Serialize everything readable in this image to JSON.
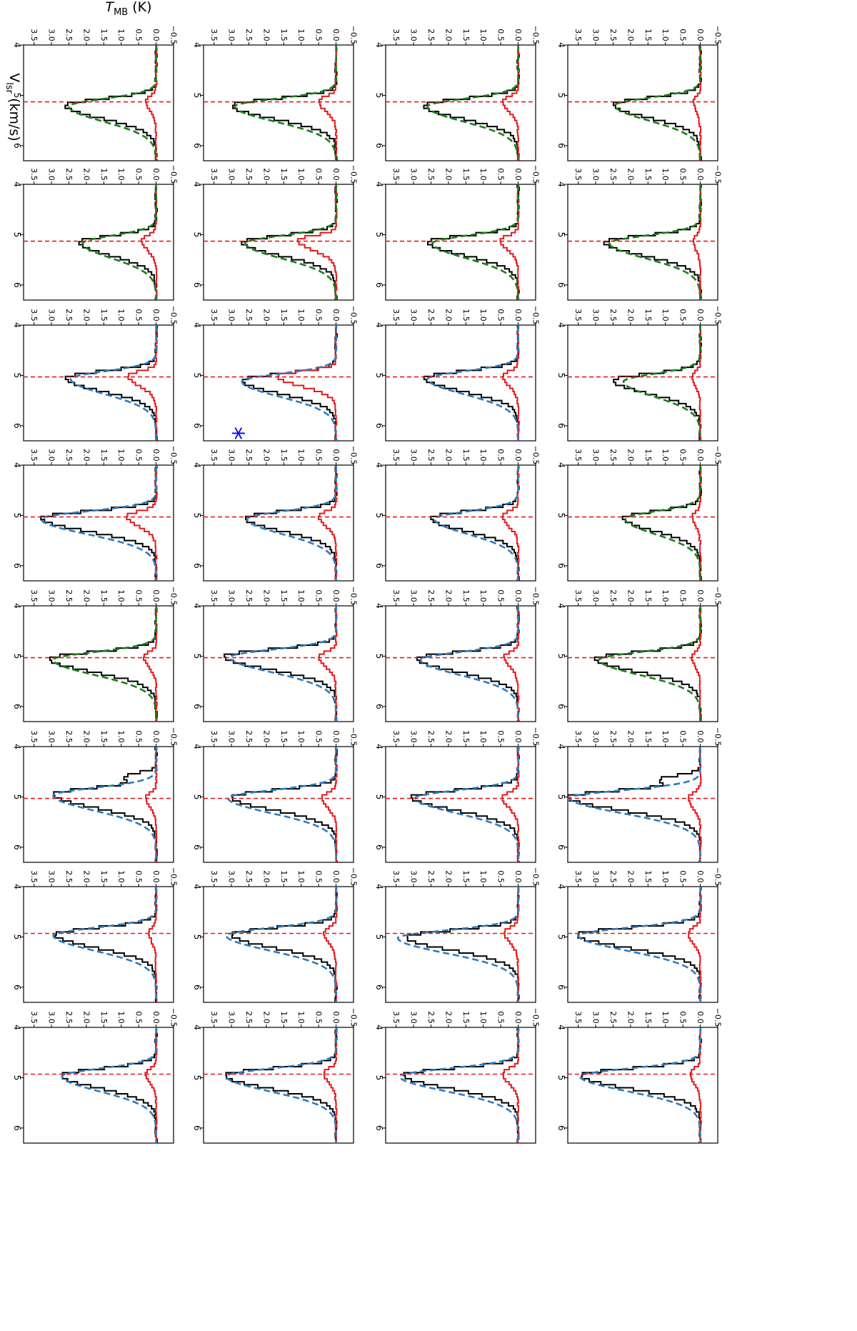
{
  "chart_data": {
    "type": "line",
    "layout": "grid of 32 spectra (4 rows by 8 columns), figure rotated 90 degrees clockwise",
    "xlabel": "V_lsr (km/s)",
    "xlabel_main": "V",
    "xlabel_sub": "lsr",
    "xlabel_unit": " (km/s)",
    "ylabel": "T_MB (K)",
    "ylabel_main": "T",
    "ylabel_sub": "MB",
    "ylabel_unit": " (K)",
    "xlim": [
      4.0,
      6.3
    ],
    "ylim": [
      -0.5,
      3.8
    ],
    "xticks": [
      4,
      5,
      6
    ],
    "xtick_labels": [
      "4",
      "5",
      "6"
    ],
    "yticks": [
      -0.5,
      0.0,
      0.5,
      1.0,
      1.5,
      2.0,
      2.5,
      3.0,
      3.5
    ],
    "ytick_labels": [
      "−0.5",
      "0.0",
      "0.5",
      "1.0",
      "1.5",
      "2.0",
      "2.5",
      "3.0",
      "3.5"
    ],
    "grid": false,
    "legend": "none",
    "colors": {
      "observed": "#000000",
      "second_line": "#e41a1c",
      "fit_green": "#1a7f1a",
      "fit_blue": "#2f7bbf",
      "marker": "#0000ff"
    },
    "series_descriptions": {
      "observed": "black histogram spectrum",
      "second_line": "red histogram spectrum",
      "fit": "dashed model fit (green or blue)",
      "reference_velocity": "red dashed vertical line"
    },
    "panels": [
      {
        "row": 1,
        "col": 1,
        "peak_v": 5.18,
        "peak_t": 2.5,
        "fit_color": "green",
        "fit_peak": 2.45,
        "ref_v": 5.13,
        "red_peak": 0.2
      },
      {
        "row": 1,
        "col": 2,
        "peak_v": 5.15,
        "peak_t": 2.75,
        "fit_color": "green",
        "fit_peak": 2.6,
        "ref_v": 5.13,
        "red_peak": 0.2
      },
      {
        "row": 1,
        "col": 3,
        "peak_v": 5.1,
        "peak_t": 2.5,
        "fit_color": "green",
        "fit_peak": 2.2,
        "ref_v": 5.03,
        "red_peak": 0.22
      },
      {
        "row": 1,
        "col": 4,
        "peak_v": 5.05,
        "peak_t": 2.2,
        "fit_color": "green",
        "fit_peak": 2.15,
        "ref_v": 5.03,
        "red_peak": 0.22
      },
      {
        "row": 1,
        "col": 5,
        "peak_v": 5.05,
        "peak_t": 3.0,
        "fit_color": "green",
        "fit_peak": 2.9,
        "ref_v": 5.03,
        "red_peak": 0.25
      },
      {
        "row": 1,
        "col": 6,
        "peak_v": 5.0,
        "peak_t": 3.8,
        "fit_color": "blue",
        "fit_peak": 3.75,
        "ref_v": 5.03,
        "red_peak": 0.35,
        "shoulder": true
      },
      {
        "row": 1,
        "col": 7,
        "peak_v": 4.95,
        "peak_t": 3.55,
        "fit_color": "blue",
        "fit_peak": 3.5,
        "ref_v": 4.93,
        "red_peak": 0.35
      },
      {
        "row": 1,
        "col": 8,
        "peak_v": 4.95,
        "peak_t": 3.45,
        "fit_color": "blue",
        "fit_peak": 3.45,
        "ref_v": 4.93,
        "red_peak": 0.3
      },
      {
        "row": 2,
        "col": 1,
        "peak_v": 5.2,
        "peak_t": 2.7,
        "fit_color": "green",
        "fit_peak": 2.6,
        "ref_v": 5.13,
        "red_peak": 0.45
      },
      {
        "row": 2,
        "col": 2,
        "peak_v": 5.15,
        "peak_t": 2.6,
        "fit_color": "green",
        "fit_peak": 2.45,
        "ref_v": 5.13,
        "red_peak": 0.5
      },
      {
        "row": 2,
        "col": 3,
        "peak_v": 5.05,
        "peak_t": 2.7,
        "fit_color": "blue",
        "fit_peak": 2.6,
        "ref_v": 5.03,
        "red_peak": 0.45
      },
      {
        "row": 2,
        "col": 4,
        "peak_v": 5.05,
        "peak_t": 2.5,
        "fit_color": "blue",
        "fit_peak": 2.4,
        "ref_v": 5.03,
        "red_peak": 0.45
      },
      {
        "row": 2,
        "col": 5,
        "peak_v": 5.05,
        "peak_t": 2.9,
        "fit_color": "blue",
        "fit_peak": 2.8,
        "ref_v": 5.03,
        "red_peak": 0.4
      },
      {
        "row": 2,
        "col": 6,
        "peak_v": 5.0,
        "peak_t": 3.05,
        "fit_color": "blue",
        "fit_peak": 2.95,
        "ref_v": 5.03,
        "red_peak": 0.45
      },
      {
        "row": 2,
        "col": 7,
        "peak_v": 5.0,
        "peak_t": 3.2,
        "fit_color": "blue",
        "fit_peak": 3.45,
        "ref_v": 4.93,
        "red_peak": 0.4
      },
      {
        "row": 2,
        "col": 8,
        "peak_v": 4.95,
        "peak_t": 3.3,
        "fit_color": "blue",
        "fit_peak": 3.4,
        "ref_v": 4.93,
        "red_peak": 0.45
      },
      {
        "row": 3,
        "col": 1,
        "peak_v": 5.2,
        "peak_t": 3.0,
        "fit_color": "green",
        "fit_peak": 2.9,
        "ref_v": 5.13,
        "red_peak": 0.5
      },
      {
        "row": 3,
        "col": 2,
        "peak_v": 5.15,
        "peak_t": 2.7,
        "fit_color": "green",
        "fit_peak": 2.6,
        "ref_v": 5.13,
        "red_peak": 1.1
      },
      {
        "row": 3,
        "col": 3,
        "peak_v": 5.1,
        "peak_t": 2.7,
        "fit_color": "blue",
        "fit_peak": 2.7,
        "ref_v": 5.03,
        "red_peak": 1.7,
        "marker": true
      },
      {
        "row": 3,
        "col": 4,
        "peak_v": 5.05,
        "peak_t": 2.6,
        "fit_color": "blue",
        "fit_peak": 2.55,
        "ref_v": 5.03,
        "red_peak": 0.5
      },
      {
        "row": 3,
        "col": 5,
        "peak_v": 5.0,
        "peak_t": 3.2,
        "fit_color": "blue",
        "fit_peak": 3.05,
        "ref_v": 5.03,
        "red_peak": 0.5
      },
      {
        "row": 3,
        "col": 6,
        "peak_v": 5.0,
        "peak_t": 3.0,
        "fit_color": "blue",
        "fit_peak": 3.1,
        "ref_v": 5.03,
        "red_peak": 0.4
      },
      {
        "row": 3,
        "col": 7,
        "peak_v": 4.95,
        "peak_t": 3.0,
        "fit_color": "blue",
        "fit_peak": 3.15,
        "ref_v": 4.93,
        "red_peak": 0.35
      },
      {
        "row": 3,
        "col": 8,
        "peak_v": 4.95,
        "peak_t": 3.2,
        "fit_color": "blue",
        "fit_peak": 3.15,
        "ref_v": 4.93,
        "red_peak": 0.35
      },
      {
        "row": 4,
        "col": 1,
        "peak_v": 5.2,
        "peak_t": 2.6,
        "fit_color": "green",
        "fit_peak": 2.5,
        "ref_v": 5.13,
        "red_peak": 0.3
      },
      {
        "row": 4,
        "col": 2,
        "peak_v": 5.15,
        "peak_t": 2.2,
        "fit_color": "green",
        "fit_peak": 2.1,
        "ref_v": 5.13,
        "red_peak": 0.4
      },
      {
        "row": 4,
        "col": 3,
        "peak_v": 5.05,
        "peak_t": 2.6,
        "fit_color": "blue",
        "fit_peak": 2.45,
        "ref_v": 5.03,
        "red_peak": 0.8
      },
      {
        "row": 4,
        "col": 4,
        "peak_v": 5.05,
        "peak_t": 3.3,
        "fit_color": "blue",
        "fit_peak": 3.3,
        "ref_v": 5.03,
        "red_peak": 0.85
      },
      {
        "row": 4,
        "col": 5,
        "peak_v": 5.05,
        "peak_t": 3.05,
        "fit_color": "green",
        "fit_peak": 2.95,
        "ref_v": 5.03,
        "red_peak": 0.35
      },
      {
        "row": 4,
        "col": 6,
        "peak_v": 4.95,
        "peak_t": 2.95,
        "fit_color": "blue",
        "fit_peak": 2.95,
        "ref_v": 5.03,
        "red_peak": 0.3,
        "shoulder": true
      },
      {
        "row": 4,
        "col": 7,
        "peak_v": 4.95,
        "peak_t": 2.9,
        "fit_color": "blue",
        "fit_peak": 2.95,
        "ref_v": 4.93,
        "red_peak": 0.2
      },
      {
        "row": 4,
        "col": 8,
        "peak_v": 4.95,
        "peak_t": 2.7,
        "fit_color": "blue",
        "fit_peak": 2.7,
        "ref_v": 4.93,
        "red_peak": 0.3
      }
    ]
  }
}
